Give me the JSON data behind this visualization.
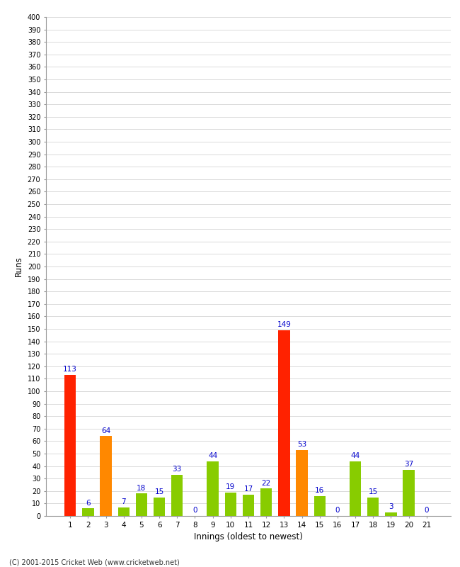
{
  "xlabel": "Innings (oldest to newest)",
  "ylabel": "Runs",
  "innings": [
    1,
    2,
    3,
    4,
    5,
    6,
    7,
    8,
    9,
    10,
    11,
    12,
    13,
    14,
    15,
    16,
    17,
    18,
    19,
    20,
    21
  ],
  "values": [
    113,
    6,
    64,
    7,
    18,
    15,
    33,
    0,
    44,
    19,
    17,
    22,
    149,
    53,
    16,
    0,
    44,
    15,
    3,
    37,
    0
  ],
  "colors": [
    "#ff2200",
    "#88cc00",
    "#ff8800",
    "#88cc00",
    "#88cc00",
    "#88cc00",
    "#88cc00",
    "#88cc00",
    "#88cc00",
    "#88cc00",
    "#88cc00",
    "#88cc00",
    "#ff2200",
    "#ff8800",
    "#88cc00",
    "#88cc00",
    "#88cc00",
    "#88cc00",
    "#88cc00",
    "#88cc00",
    "#88cc00"
  ],
  "ylim": [
    0,
    400
  ],
  "bg_color": "#ffffff",
  "grid_color": "#cccccc",
  "label_color": "#0000cc",
  "footer": "(C) 2001-2015 Cricket Web (www.cricketweb.net)"
}
